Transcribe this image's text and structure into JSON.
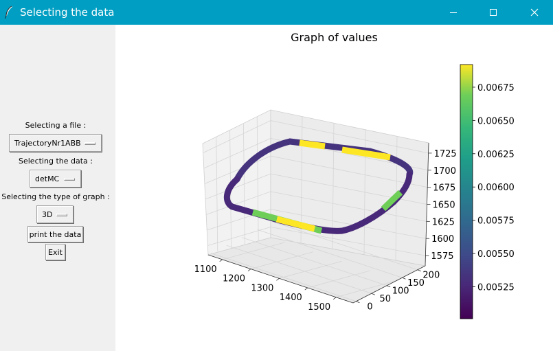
{
  "window": {
    "title": "Selecting the data",
    "icon": "feather-icon",
    "controls": [
      "minimize-icon",
      "maximize-icon",
      "close-icon"
    ]
  },
  "controls": {
    "file_label": "Selecting a file :",
    "file_value": "TrajectoryNr1ABB",
    "data_label": "Selecting the data :",
    "data_value": "detMC",
    "graph_label": "Selecting the type of graph :",
    "graph_value": "3D",
    "print_button": "print the data",
    "exit_button": "Exit"
  },
  "chart_data": {
    "type": "scatter",
    "title": "Graph of values",
    "x_ticks": [
      "1100",
      "1200",
      "1300",
      "1400",
      "1500"
    ],
    "y_ticks": [
      "0",
      "50",
      "100",
      "150",
      "200"
    ],
    "z_ticks": [
      "1575",
      "1600",
      "1625",
      "1650",
      "1675",
      "1700",
      "1725"
    ],
    "xlim": [
      1050,
      1560
    ],
    "ylim": [
      -10,
      225
    ],
    "zlim": [
      1560,
      1740
    ],
    "colorbar": {
      "colormap": "viridis",
      "ticks": [
        "0.00525",
        "0.00550",
        "0.00575",
        "0.00600",
        "0.00625",
        "0.00650",
        "0.00675"
      ],
      "range": [
        0.00501,
        0.00692
      ]
    },
    "trajectory": {
      "shape": "rounded-rectangle",
      "x_range": [
        1080,
        1520
      ],
      "y_range": [
        10,
        200
      ],
      "z": 1650,
      "color_min": "#440154",
      "color_max": "#fde725"
    }
  }
}
